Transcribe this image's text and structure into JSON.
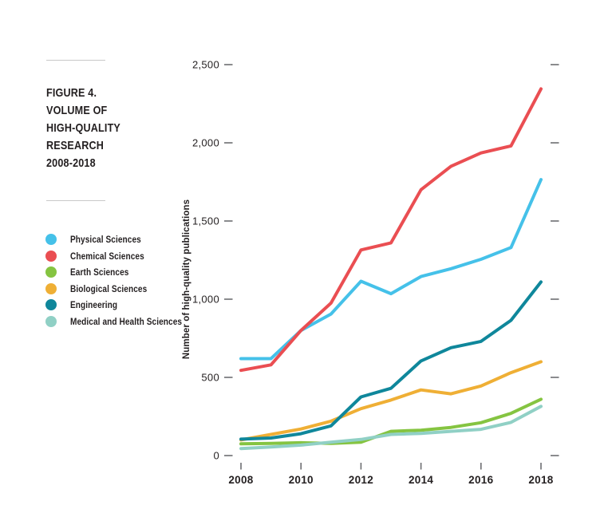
{
  "figure": {
    "label": "FIGURE 4.",
    "title_lines": [
      "VOLUME OF",
      "HIGH-QUALITY",
      "RESEARCH",
      "2008-2018"
    ]
  },
  "chart_data": {
    "type": "line",
    "x": [
      2008,
      2009,
      2010,
      2011,
      2012,
      2013,
      2014,
      2015,
      2016,
      2017,
      2018
    ],
    "series": [
      {
        "name": "Physical Sciences",
        "color": "#45c1e9",
        "values": [
          620,
          620,
          800,
          905,
          1115,
          1035,
          1145,
          1195,
          1255,
          1330,
          1765
        ]
      },
      {
        "name": "Chemical Sciences",
        "color": "#ea4e52",
        "values": [
          545,
          580,
          800,
          975,
          1315,
          1360,
          1700,
          1850,
          1935,
          1980,
          2345
        ]
      },
      {
        "name": "Earth Sciences",
        "color": "#85c441",
        "values": [
          75,
          78,
          82,
          78,
          85,
          155,
          162,
          180,
          210,
          270,
          360
        ]
      },
      {
        "name": "Biological Sciences",
        "color": "#efaf35",
        "values": [
          100,
          135,
          170,
          220,
          300,
          355,
          420,
          395,
          445,
          530,
          600
        ]
      },
      {
        "name": "Engineering",
        "color": "#0f879b",
        "values": [
          105,
          112,
          140,
          190,
          375,
          430,
          605,
          690,
          730,
          865,
          1110
        ]
      },
      {
        "name": "Medical and Health Sciences",
        "color": "#90d0c5",
        "values": [
          45,
          55,
          67,
          85,
          103,
          135,
          142,
          155,
          168,
          212,
          315
        ]
      }
    ],
    "ylabel": "Number of high-quality publications",
    "xlabel": "",
    "ylim": [
      0,
      2500
    ],
    "y_ticks": [
      0,
      500,
      1000,
      1500,
      2000,
      2500
    ],
    "y_tick_labels": [
      "0",
      "500",
      "1,000",
      "1,500",
      "2,000",
      "2,500"
    ],
    "x_ticks": [
      2008,
      2010,
      2012,
      2014,
      2016,
      2018
    ],
    "x_tick_labels": [
      "2008",
      "2010",
      "2012",
      "2014",
      "2016",
      "2018"
    ],
    "grid": false,
    "legend_position": "left",
    "right_axis_tick_marks": true,
    "text_color": "#231f20",
    "tick_color": "#6d6e71"
  }
}
